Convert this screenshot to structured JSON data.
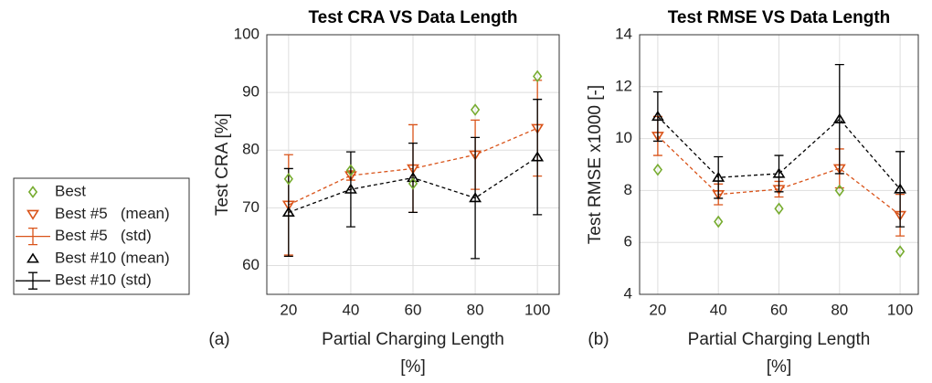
{
  "chart_data": [
    {
      "type": "errorbar",
      "title": "Test CRA VS Data Length",
      "panel_label": "(a)",
      "xlabel": [
        "Partial Charging Length",
        "[%]"
      ],
      "ylabel": "Test CRA [%]",
      "x": [
        20,
        40,
        60,
        80,
        100
      ],
      "xlim": [
        13,
        107
      ],
      "xticks": [
        20,
        40,
        60,
        80,
        100
      ],
      "ylim": [
        55,
        100
      ],
      "yticks": [
        60,
        70,
        80,
        90,
        100
      ],
      "grid": true,
      "series": [
        {
          "name": "Best #5",
          "color": "#d95319",
          "marker": "triangle-down",
          "dashed": true,
          "values": [
            70.5,
            75.6,
            76.8,
            79.2,
            83.8
          ],
          "errors": [
            8.7,
            0.8,
            7.6,
            6.0,
            8.3
          ]
        },
        {
          "name": "Best #10",
          "color": "#000000",
          "marker": "triangle-up",
          "dashed": true,
          "values": [
            69.2,
            73.2,
            75.2,
            71.7,
            78.8
          ],
          "errors": [
            7.6,
            6.5,
            6.0,
            10.5,
            10.0
          ]
        },
        {
          "name": "Best",
          "color": "#77ac30",
          "marker": "diamond",
          "dashed": false,
          "values": [
            75.0,
            76.5,
            74.2,
            87.0,
            92.8
          ]
        }
      ]
    },
    {
      "type": "errorbar",
      "title": "Test RMSE VS Data Length",
      "panel_label": "(b)",
      "xlabel": [
        "Partial Charging Length",
        "[%]"
      ],
      "ylabel": "Test RMSE x1000 [-]",
      "x": [
        20,
        40,
        60,
        80,
        100
      ],
      "xlim": [
        14,
        106
      ],
      "xticks": [
        20,
        40,
        60,
        80,
        100
      ],
      "ylim": [
        4,
        14
      ],
      "yticks": [
        4,
        6,
        8,
        10,
        12,
        14
      ],
      "grid": true,
      "series": [
        {
          "name": "Best #5",
          "color": "#d95319",
          "marker": "triangle-down",
          "dashed": true,
          "values": [
            10.1,
            7.85,
            8.05,
            8.85,
            7.05
          ],
          "errors": [
            0.75,
            0.4,
            0.3,
            0.75,
            0.8
          ]
        },
        {
          "name": "Best #10",
          "color": "#000000",
          "marker": "triangle-up",
          "dashed": true,
          "values": [
            10.85,
            8.5,
            8.65,
            10.75,
            8.05
          ],
          "errors": [
            0.95,
            0.8,
            0.7,
            2.1,
            1.45
          ]
        },
        {
          "name": "Best",
          "color": "#77ac30",
          "marker": "diamond",
          "dashed": false,
          "values": [
            8.8,
            6.8,
            7.3,
            8.0,
            5.65
          ]
        }
      ]
    }
  ],
  "legend": [
    "Best",
    "Best #5   (mean)",
    "Best #5   (std)",
    "Best #10 (mean)",
    "Best #10 (std)"
  ]
}
